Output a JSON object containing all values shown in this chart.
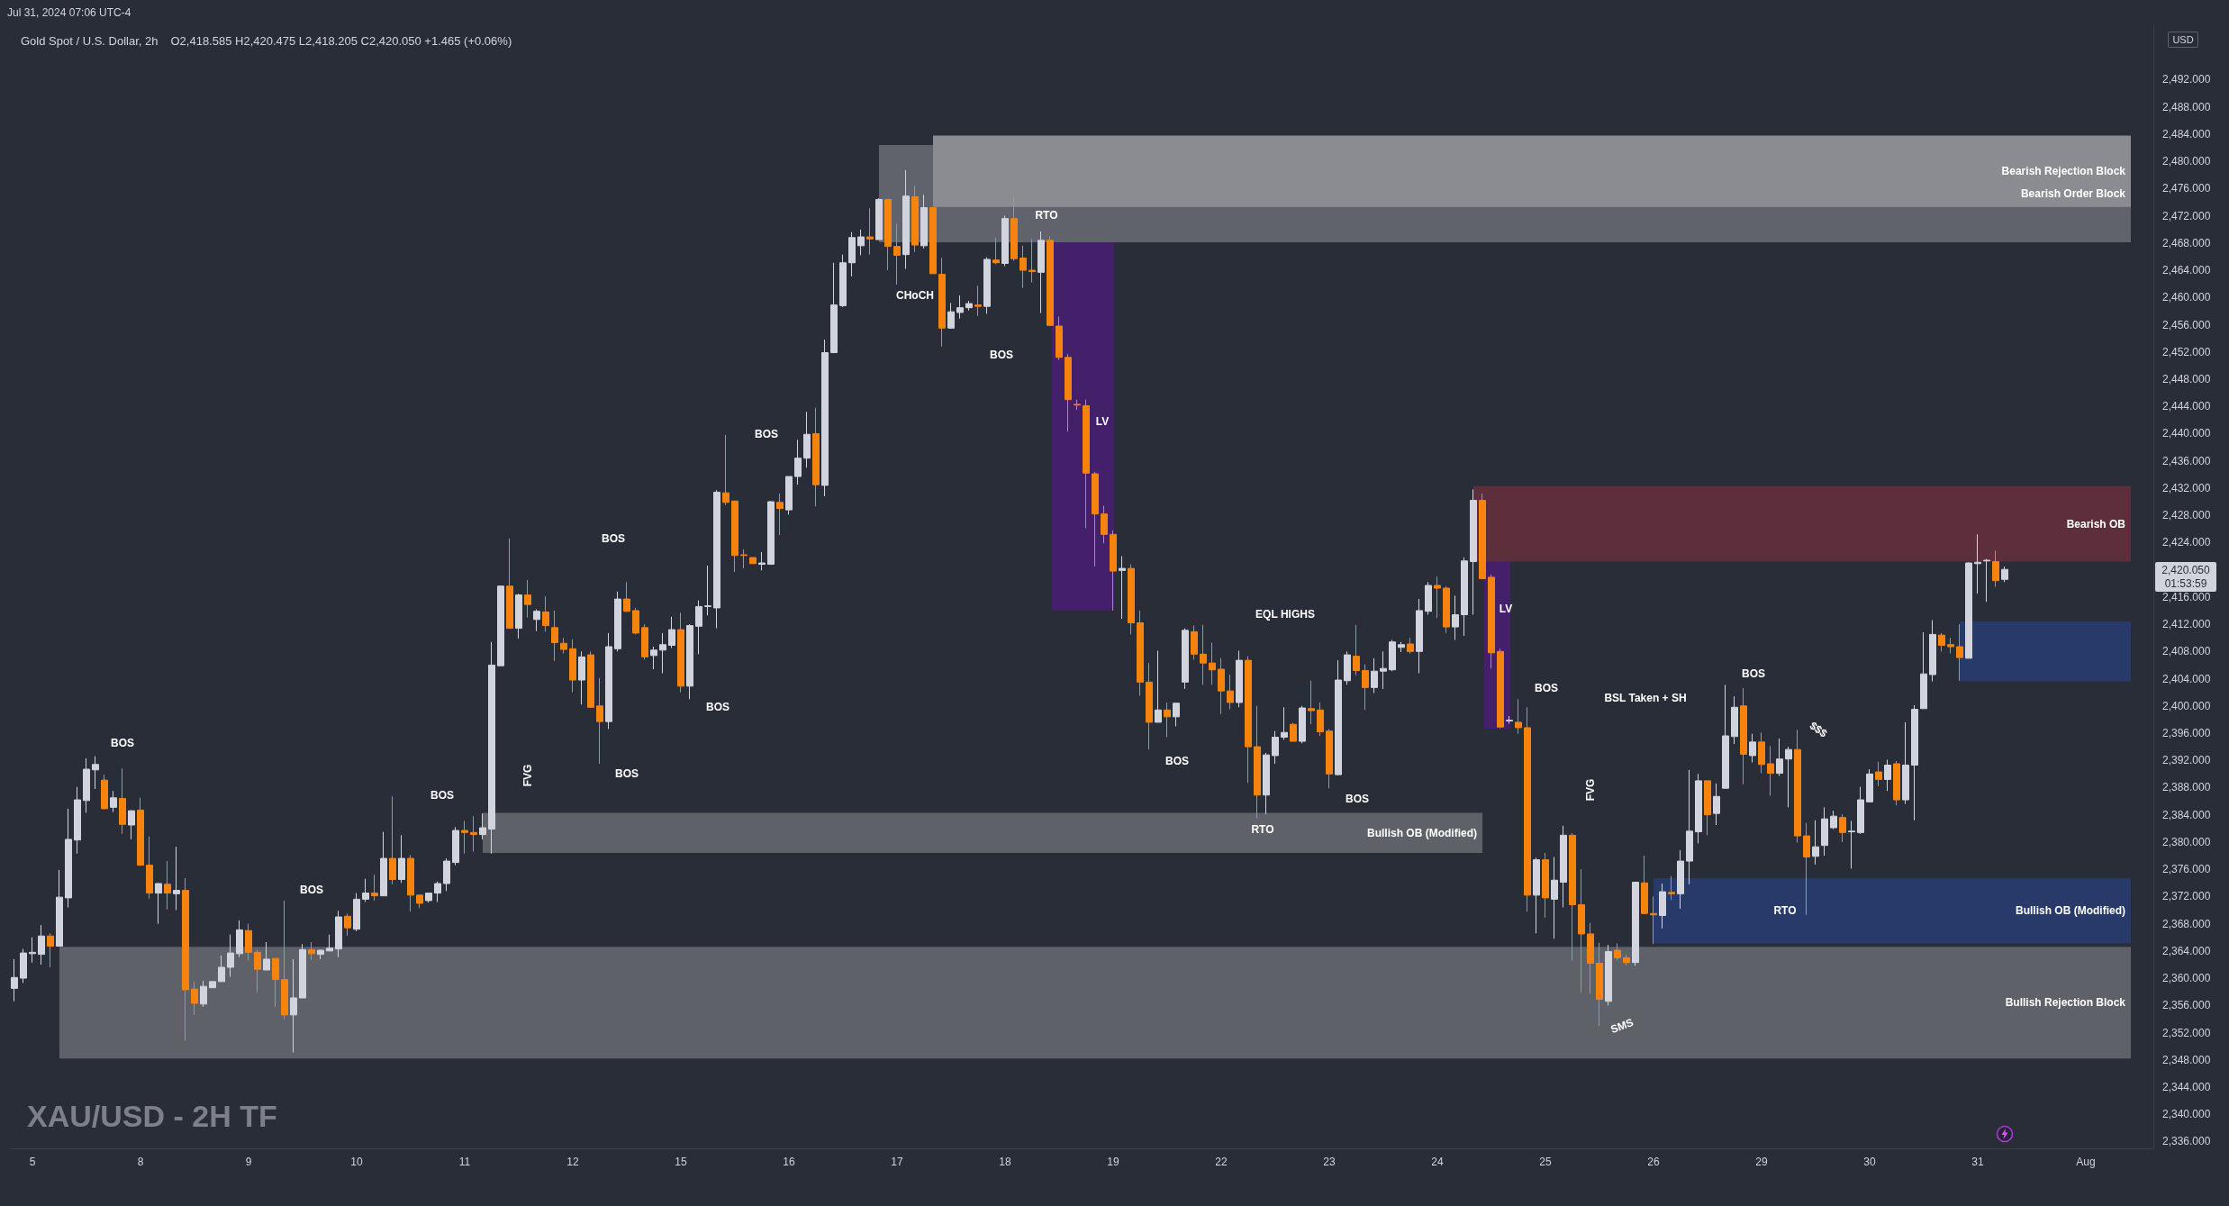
{
  "chart_data": {
    "type": "candlestick",
    "title": "Gold Spot / U.S. Dollar, 2h",
    "subtitle": "O2,418.585 H2,420.475 L2,418.205 C2,420.050 +1.465 (+0.06%)",
    "categories": [
      null,
      null,
      "5",
      null,
      null,
      null,
      null,
      null,
      null,
      null,
      null,
      null,
      null,
      null,
      "8",
      null,
      null,
      null,
      null,
      null,
      null,
      null,
      null,
      null,
      null,
      null,
      "9",
      null,
      null,
      null,
      null,
      null,
      null,
      null,
      null,
      null,
      null,
      null,
      "10",
      null,
      null,
      null,
      null,
      null,
      null,
      null,
      null,
      null,
      null,
      null,
      "11",
      null,
      null,
      null,
      null,
      null,
      null,
      null,
      null,
      null,
      null,
      null,
      "12",
      null,
      null,
      null,
      null,
      null,
      null,
      null,
      null,
      null,
      null,
      null,
      "15",
      null,
      null,
      null,
      null,
      null,
      null,
      null,
      null,
      null,
      null,
      null,
      "16",
      null,
      null,
      null,
      null,
      null,
      null,
      null,
      null,
      null,
      null,
      null,
      "17",
      null,
      null,
      null,
      null,
      null,
      null,
      null,
      null,
      null,
      null,
      null,
      "18",
      null,
      null,
      null,
      null,
      null,
      null,
      null,
      null,
      null,
      null,
      null,
      "19",
      null,
      null,
      null,
      null,
      null,
      null,
      null,
      null,
      null,
      null,
      null,
      "22",
      null,
      null,
      null,
      null,
      null,
      null,
      null,
      null,
      null,
      null,
      null,
      "23",
      null,
      null,
      null,
      null,
      null,
      null,
      null,
      null,
      null,
      null,
      null,
      "24",
      null,
      null,
      null,
      null,
      null,
      null,
      null,
      null,
      null,
      null,
      null,
      "25",
      null,
      null,
      null,
      null,
      null,
      null,
      null,
      null,
      null,
      null,
      null,
      "26",
      null,
      null,
      null,
      null,
      null,
      null,
      null,
      null,
      null,
      null,
      null,
      "29",
      null,
      null,
      null,
      null,
      null,
      null,
      null,
      null,
      null,
      null,
      null,
      "30",
      null,
      null,
      null,
      null,
      null,
      null,
      null,
      null,
      null,
      null,
      null,
      "31",
      null,
      null,
      null,
      null,
      null,
      null,
      null,
      null,
      null,
      null,
      null,
      "Aug",
      null,
      null,
      null,
      null,
      null,
      null,
      null
    ],
    "ohlc": [
      [
        2358.5,
        2362.8,
        2356.6,
        2360.1
      ],
      [
        2360.0,
        2364.3,
        2359.3,
        2363.7
      ],
      [
        2363.6,
        2366.0,
        2362.3,
        2363.8
      ],
      [
        2363.5,
        2367.8,
        2362.0,
        2366.2
      ],
      [
        2366.2,
        2366.6,
        2361.6,
        2364.7
      ],
      [
        2364.7,
        2375.9,
        2364.7,
        2371.9
      ],
      [
        2371.8,
        2384.9,
        2370.4,
        2380.4
      ],
      [
        2380.3,
        2388.1,
        2378.3,
        2386.2
      ],
      [
        2386.1,
        2392.3,
        2384.3,
        2390.7
      ],
      [
        2390.6,
        2392.6,
        2387.8,
        2391.4
      ],
      [
        2389.1,
        2389.9,
        2384.8,
        2384.9
      ],
      [
        2385.1,
        2387.5,
        2384.4,
        2386.5
      ],
      [
        2386.4,
        2390.8,
        2381.2,
        2382.6
      ],
      [
        2382.5,
        2384.7,
        2380.4,
        2384.6
      ],
      [
        2384.7,
        2386.5,
        2376.5,
        2376.6
      ],
      [
        2376.6,
        2380.8,
        2371.7,
        2372.5
      ],
      [
        2372.5,
        2374.0,
        2368.0,
        2373.9
      ],
      [
        2373.8,
        2377.2,
        2370.1,
        2372.5
      ],
      [
        2372.4,
        2379.3,
        2370.0,
        2372.9
      ],
      [
        2372.9,
        2374.7,
        2350.8,
        2358.3
      ],
      [
        2358.4,
        2359.5,
        2354.6,
        2356.3
      ],
      [
        2356.2,
        2359.6,
        2355.8,
        2358.8
      ],
      [
        2358.6,
        2359.5,
        2358.6,
        2359.5
      ],
      [
        2359.5,
        2363.3,
        2359.5,
        2361.6
      ],
      [
        2361.6,
        2366.4,
        2360.2,
        2363.7
      ],
      [
        2363.6,
        2368.5,
        2363.1,
        2367.1
      ],
      [
        2367.0,
        2368.0,
        2362.6,
        2363.8
      ],
      [
        2363.8,
        2364.2,
        2357.9,
        2361.3
      ],
      [
        2361.2,
        2365.3,
        2361.2,
        2362.8
      ],
      [
        2362.9,
        2362.9,
        2355.8,
        2359.8
      ],
      [
        2359.8,
        2371.4,
        2353.9,
        2354.6
      ],
      [
        2354.6,
        2362.8,
        2349.1,
        2357.1
      ],
      [
        2357.1,
        2365.0,
        2357.1,
        2364.2
      ],
      [
        2364.2,
        2365.3,
        2362.7,
        2363.6
      ],
      [
        2363.5,
        2364.2,
        2362.8,
        2364.1
      ],
      [
        2364.0,
        2366.4,
        2364.0,
        2364.4
      ],
      [
        2364.3,
        2369.9,
        2363.1,
        2369.0
      ],
      [
        2369.1,
        2369.5,
        2366.2,
        2367.4
      ],
      [
        2367.2,
        2372.5,
        2366.9,
        2371.6
      ],
      [
        2371.6,
        2374.6,
        2371.2,
        2372.5
      ],
      [
        2372.5,
        2375.2,
        2371.4,
        2372.1
      ],
      [
        2372.1,
        2381.5,
        2372.1,
        2377.6
      ],
      [
        2377.6,
        2386.7,
        2373.8,
        2374.5
      ],
      [
        2374.5,
        2381.0,
        2374.0,
        2377.6
      ],
      [
        2377.6,
        2378.1,
        2369.8,
        2372.2
      ],
      [
        2372.2,
        2372.2,
        2370.3,
        2371.0
      ],
      [
        2371.4,
        2372.5,
        2371.1,
        2372.5
      ],
      [
        2372.5,
        2374.2,
        2371.2,
        2373.9
      ],
      [
        2373.9,
        2377.6,
        2372.8,
        2377.2
      ],
      [
        2377.0,
        2382.2,
        2376.6,
        2381.7
      ],
      [
        2381.7,
        2383.1,
        2378.3,
        2381.4
      ],
      [
        2381.4,
        2383.8,
        2378.6,
        2381.1
      ],
      [
        2381.1,
        2384.2,
        2380.4,
        2382.1
      ],
      [
        2381.9,
        2409.4,
        2378.3,
        2406.0
      ],
      [
        2405.9,
        2417.7,
        2405.9,
        2417.6
      ],
      [
        2417.6,
        2424.6,
        2411.4,
        2411.4
      ],
      [
        2411.4,
        2416.5,
        2409.9,
        2416.3
      ],
      [
        2416.3,
        2418.5,
        2413.0,
        2414.9
      ],
      [
        2412.7,
        2414.2,
        2411.0,
        2413.9
      ],
      [
        2413.8,
        2416.1,
        2410.9,
        2411.8
      ],
      [
        2411.5,
        2414.0,
        2406.6,
        2409.3
      ],
      [
        2409.2,
        2410.0,
        2407.7,
        2408.3
      ],
      [
        2408.4,
        2409.8,
        2402.0,
        2403.8
      ],
      [
        2403.8,
        2408.0,
        2400.2,
        2407.2
      ],
      [
        2407.5,
        2408.0,
        2399.7,
        2399.8
      ],
      [
        2400.0,
        2404.1,
        2391.5,
        2397.7
      ],
      [
        2397.7,
        2410.7,
        2396.6,
        2408.7
      ],
      [
        2408.4,
        2416.8,
        2408.0,
        2415.7
      ],
      [
        2415.7,
        2418.2,
        2413.8,
        2413.9
      ],
      [
        2414.0,
        2414.4,
        2410.5,
        2410.7
      ],
      [
        2411.5,
        2412.0,
        2406.8,
        2407.2
      ],
      [
        2407.4,
        2408.7,
        2405.4,
        2408.2
      ],
      [
        2408.2,
        2410.7,
        2404.8,
        2409.0
      ],
      [
        2408.9,
        2413.1,
        2408.5,
        2411.2
      ],
      [
        2411.2,
        2413.7,
        2402.0,
        2402.9
      ],
      [
        2402.9,
        2412.0,
        2401.0,
        2411.8
      ],
      [
        2411.7,
        2415.5,
        2407.6,
        2414.6
      ],
      [
        2414.6,
        2420.6,
        2413.3,
        2414.7
      ],
      [
        2414.4,
        2431.7,
        2411.4,
        2431.4
      ],
      [
        2431.3,
        2439.8,
        2429.5,
        2429.9
      ],
      [
        2430.1,
        2430.1,
        2419.7,
        2422.1
      ],
      [
        2422.2,
        2423.0,
        2420.2,
        2422.1
      ],
      [
        2421.8,
        2421.8,
        2420.9,
        2420.9
      ],
      [
        2420.8,
        2422.6,
        2419.9,
        2421.0
      ],
      [
        2420.8,
        2430.1,
        2420.8,
        2430.0
      ],
      [
        2429.9,
        2431.2,
        2425.1,
        2429.0
      ],
      [
        2428.8,
        2433.7,
        2428.1,
        2433.7
      ],
      [
        2433.7,
        2439.1,
        2432.5,
        2436.4
      ],
      [
        2436.4,
        2443.2,
        2435.0,
        2439.9
      ],
      [
        2440.0,
        2443.8,
        2429.3,
        2432.5
      ],
      [
        2432.4,
        2453.8,
        2430.8,
        2451.9
      ],
      [
        2451.9,
        2465.1,
        2451.9,
        2458.9
      ],
      [
        2458.8,
        2466.3,
        2458.6,
        2465.1
      ],
      [
        2465.1,
        2469.6,
        2463.1,
        2468.8
      ],
      [
        2467.6,
        2470.0,
        2466.2,
        2468.9
      ],
      [
        2468.9,
        2473.1,
        2466.3,
        2468.6
      ],
      [
        2468.5,
        2474.6,
        2468.5,
        2474.4
      ],
      [
        2474.4,
        2474.4,
        2464.0,
        2467.5
      ],
      [
        2467.5,
        2470.8,
        2461.9,
        2466.2
      ],
      [
        2466.3,
        2478.7,
        2464.2,
        2474.9
      ],
      [
        2474.8,
        2476.4,
        2466.7,
        2467.7
      ],
      [
        2467.6,
        2475.1,
        2467.2,
        2473.2
      ],
      [
        2473.2,
        2473.2,
        2463.5,
        2463.5
      ],
      [
        2463.4,
        2465.8,
        2452.8,
        2455.5
      ],
      [
        2455.5,
        2459.2,
        2455.4,
        2457.9
      ],
      [
        2457.8,
        2460.3,
        2456.9,
        2458.5
      ],
      [
        2458.5,
        2459.5,
        2458.1,
        2459.1
      ],
      [
        2458.9,
        2461.7,
        2457.3,
        2458.7
      ],
      [
        2458.7,
        2465.9,
        2457.6,
        2465.6
      ],
      [
        2465.5,
        2468.8,
        2464.9,
        2465.1
      ],
      [
        2465.0,
        2472.0,
        2464.6,
        2471.6
      ],
      [
        2471.6,
        2474.9,
        2465.4,
        2465.7
      ],
      [
        2465.8,
        2467.6,
        2461.4,
        2464.0
      ],
      [
        2464.0,
        2468.6,
        2462.2,
        2463.8
      ],
      [
        2463.7,
        2469.7,
        2457.7,
        2468.4
      ],
      [
        2468.4,
        2469.0,
        2455.8,
        2455.9
      ],
      [
        2455.8,
        2457.2,
        2450.8,
        2451.2
      ],
      [
        2451.2,
        2451.7,
        2440.3,
        2445.0
      ],
      [
        2444.3,
        2445.0,
        2443.5,
        2444.2
      ],
      [
        2444.1,
        2445.0,
        2426.1,
        2434.2
      ],
      [
        2434.1,
        2434.4,
        2420.5,
        2428.2
      ],
      [
        2428.2,
        2429.4,
        2423.9,
        2425.2
      ],
      [
        2425.2,
        2425.8,
        2414.0,
        2419.8
      ],
      [
        2419.9,
        2422.0,
        2412.8,
        2420.2
      ],
      [
        2420.2,
        2420.8,
        2410.5,
        2412.2
      ],
      [
        2412.2,
        2414.0,
        2401.5,
        2403.5
      ],
      [
        2403.5,
        2406.3,
        2393.6,
        2397.6
      ],
      [
        2397.6,
        2408.1,
        2397.6,
        2399.4
      ],
      [
        2399.4,
        2400.5,
        2395.4,
        2398.4
      ],
      [
        2398.4,
        2400.4,
        2397.0,
        2400.4
      ],
      [
        2403.5,
        2411.4,
        2402.5,
        2411.1
      ],
      [
        2410.9,
        2411.8,
        2406.8,
        2407.6
      ],
      [
        2407.6,
        2411.9,
        2403.1,
        2406.3
      ],
      [
        2406.3,
        2409.3,
        2403.1,
        2405.3
      ],
      [
        2405.4,
        2407.0,
        2398.8,
        2402.2
      ],
      [
        2402.2,
        2404.6,
        2399.5,
        2400.5
      ],
      [
        2400.5,
        2408.1,
        2399.8,
        2406.7
      ],
      [
        2406.7,
        2407.3,
        2388.7,
        2394.0
      ],
      [
        2394.0,
        2400.0,
        2383.5,
        2386.9
      ],
      [
        2386.9,
        2393.1,
        2384.1,
        2392.8
      ],
      [
        2392.7,
        2396.3,
        2391.5,
        2395.4
      ],
      [
        2395.4,
        2399.8,
        2395.0,
        2396.1
      ],
      [
        2397.3,
        2397.5,
        2394.8,
        2394.8
      ],
      [
        2394.8,
        2400.0,
        2394.5,
        2399.7
      ],
      [
        2399.6,
        2403.7,
        2397.3,
        2399.3
      ],
      [
        2399.4,
        2400.5,
        2395.6,
        2396.2
      ],
      [
        2396.3,
        2396.6,
        2387.9,
        2390.0
      ],
      [
        2389.9,
        2406.7,
        2389.8,
        2403.8
      ],
      [
        2403.7,
        2408.0,
        2403.1,
        2407.5
      ],
      [
        2407.3,
        2411.9,
        2404.5,
        2405.2
      ],
      [
        2405.2,
        2406.1,
        2399.4,
        2402.7
      ],
      [
        2402.7,
        2407.0,
        2401.9,
        2405.1
      ],
      [
        2405.1,
        2408.0,
        2402.5,
        2405.5
      ],
      [
        2405.3,
        2409.7,
        2405.1,
        2409.4
      ],
      [
        2408.6,
        2409.4,
        2407.9,
        2409.0
      ],
      [
        2409.1,
        2410.0,
        2407.7,
        2408.0
      ],
      [
        2408.0,
        2415.7,
        2404.8,
        2414.0
      ],
      [
        2413.9,
        2418.2,
        2413.4,
        2417.7
      ],
      [
        2417.7,
        2419.0,
        2412.9,
        2417.3
      ],
      [
        2417.3,
        2417.6,
        2410.7,
        2411.6
      ],
      [
        2411.6,
        2416.2,
        2409.7,
        2413.4
      ],
      [
        2413.4,
        2421.8,
        2410.3,
        2421.3
      ],
      [
        2421.2,
        2431.8,
        2413.4,
        2430.2
      ],
      [
        2430.2,
        2431.2,
        2418.6,
        2418.7
      ],
      [
        2418.9,
        2419.3,
        2405.5,
        2407.8
      ],
      [
        2408.0,
        2408.4,
        2396.7,
        2396.9
      ],
      [
        2397.8,
        2398.5,
        2397.4,
        2397.9
      ],
      [
        2397.6,
        2401.0,
        2395.9,
        2396.8
      ],
      [
        2396.8,
        2399.8,
        2369.8,
        2372.2
      ],
      [
        2372.2,
        2377.7,
        2366.6,
        2377.4
      ],
      [
        2377.4,
        2378.4,
        2368.9,
        2371.8
      ],
      [
        2371.6,
        2377.8,
        2365.8,
        2374.4
      ],
      [
        2374.1,
        2382.4,
        2370.4,
        2381.0
      ],
      [
        2381.0,
        2381.3,
        2362.6,
        2370.8
      ],
      [
        2370.8,
        2376.0,
        2357.9,
        2366.5
      ],
      [
        2366.5,
        2368.1,
        2357.7,
        2362.2
      ],
      [
        2362.2,
        2365.2,
        2353.0,
        2356.9
      ],
      [
        2356.6,
        2364.9,
        2356.0,
        2363.9
      ],
      [
        2364.1,
        2365.1,
        2362.6,
        2363.0
      ],
      [
        2363.0,
        2363.4,
        2361.9,
        2362.3
      ],
      [
        2362.3,
        2374.1,
        2361.8,
        2374.1
      ],
      [
        2374.0,
        2378.0,
        2369.4,
        2369.5
      ],
      [
        2369.5,
        2372.0,
        2365.0,
        2369.3
      ],
      [
        2369.2,
        2373.9,
        2367.3,
        2372.7
      ],
      [
        2372.6,
        2375.0,
        2371.5,
        2372.4
      ],
      [
        2372.4,
        2378.8,
        2370.2,
        2377.2
      ],
      [
        2377.2,
        2390.6,
        2373.8,
        2381.6
      ],
      [
        2381.5,
        2390.0,
        2379.8,
        2389.0
      ],
      [
        2389.0,
        2389.0,
        2381.0,
        2384.0
      ],
      [
        2384.2,
        2388.6,
        2382.5,
        2386.7
      ],
      [
        2387.9,
        2403.1,
        2387.8,
        2395.6
      ],
      [
        2395.5,
        2401.4,
        2394.4,
        2399.8
      ],
      [
        2400.0,
        2402.6,
        2388.5,
        2392.9
      ],
      [
        2392.7,
        2395.9,
        2391.7,
        2394.7
      ],
      [
        2394.7,
        2396.1,
        2390.1,
        2391.4
      ],
      [
        2391.5,
        2394.1,
        2386.8,
        2390.1
      ],
      [
        2390.1,
        2395.2,
        2389.7,
        2392.2
      ],
      [
        2392.2,
        2394.0,
        2385.1,
        2393.6
      ],
      [
        2393.6,
        2396.5,
        2379.9,
        2380.9
      ],
      [
        2380.9,
        2382.8,
        2369.3,
        2377.8
      ],
      [
        2377.9,
        2383.2,
        2376.7,
        2379.3
      ],
      [
        2379.5,
        2385.1,
        2378.0,
        2383.4
      ],
      [
        2382.1,
        2384.6,
        2381.9,
        2383.8
      ],
      [
        2383.6,
        2384.1,
        2380.0,
        2381.4
      ],
      [
        2381.5,
        2383.1,
        2376.1,
        2381.6
      ],
      [
        2381.4,
        2388.1,
        2381.2,
        2386.2
      ],
      [
        2385.9,
        2390.7,
        2385.9,
        2390.0
      ],
      [
        2390.3,
        2391.8,
        2388.2,
        2389.2
      ],
      [
        2389.2,
        2392.1,
        2387.5,
        2391.3
      ],
      [
        2391.5,
        2391.9,
        2385.4,
        2386.2
      ],
      [
        2386.2,
        2397.6,
        2385.6,
        2391.3
      ],
      [
        2391.3,
        2400.1,
        2383.2,
        2399.5
      ],
      [
        2399.6,
        2410.8,
        2399.6,
        2404.7
      ],
      [
        2404.6,
        2412.6,
        2403.6,
        2410.5
      ],
      [
        2410.4,
        2410.7,
        2408.0,
        2408.9
      ],
      [
        2409.0,
        2410.0,
        2407.7,
        2408.7
      ],
      [
        2408.7,
        2412.0,
        2403.7,
        2407.1
      ],
      [
        2407.0,
        2421.1,
        2407.0,
        2421.0
      ],
      [
        2420.9,
        2425.2,
        2416.5,
        2421.1
      ],
      [
        2421.3,
        2421.6,
        2415.3,
        2421.4
      ],
      [
        2421.2,
        2422.8,
        2417.5,
        2418.4
      ],
      [
        2418.585,
        2420.475,
        2418.205,
        2420.05
      ],
      null,
      null,
      null,
      null,
      null,
      null,
      null,
      null,
      null,
      null,
      null,
      null,
      null,
      null,
      null,
      null
    ],
    "colors": [
      "#d1d4dc",
      "#d1d4dc",
      "#d1d4dc",
      "#d1d4dc",
      "#f7830f",
      "#d1d4dc",
      "#d1d4dc",
      "#d1d4dc",
      "#d1d4dc",
      "#d1d4dc",
      "#f7830f",
      "#d1d4dc",
      "#f7830f",
      "#d1d4dc",
      "#f7830f",
      "#f7830f",
      "#d1d4dc",
      "#f7830f",
      "#d1d4dc",
      "#f7830f",
      "#f7830f",
      "#d1d4dc",
      "#d1d4dc",
      "#d1d4dc",
      "#d1d4dc",
      "#d1d4dc",
      "#f7830f",
      "#f7830f",
      "#d1d4dc",
      "#f7830f",
      "#f7830f",
      "#d1d4dc",
      "#d1d4dc",
      "#f7830f",
      "#d1d4dc",
      "#d1d4dc",
      "#d1d4dc",
      "#f7830f",
      "#d1d4dc",
      "#d1d4dc",
      "#f7830f",
      "#d1d4dc",
      "#f7830f",
      "#d1d4dc",
      "#f7830f",
      "#f7830f",
      "#d1d4dc",
      "#d1d4dc",
      "#d1d4dc",
      "#d1d4dc",
      "#f7830f",
      "#f7830f",
      "#d1d4dc",
      "#d1d4dc",
      "#d1d4dc",
      "#f7830f",
      "#d1d4dc",
      "#f7830f",
      "#d1d4dc",
      "#f7830f",
      "#f7830f",
      "#f7830f",
      "#f7830f",
      "#d1d4dc",
      "#f7830f",
      "#f7830f",
      "#d1d4dc",
      "#d1d4dc",
      "#f7830f",
      "#f7830f",
      "#f7830f",
      "#d1d4dc",
      "#d1d4dc",
      "#d1d4dc",
      "#f7830f",
      "#d1d4dc",
      "#d1d4dc",
      "#d1d4dc",
      "#d1d4dc",
      "#f7830f",
      "#f7830f",
      "#f7830f",
      "#f7830f",
      "#d1d4dc",
      "#d1d4dc",
      "#f7830f",
      "#d1d4dc",
      "#d1d4dc",
      "#d1d4dc",
      "#f7830f",
      "#d1d4dc",
      "#d1d4dc",
      "#d1d4dc",
      "#d1d4dc",
      "#d1d4dc",
      "#f7830f",
      "#d1d4dc",
      "#f7830f",
      "#f7830f",
      "#d1d4dc",
      "#f7830f",
      "#d1d4dc",
      "#f7830f",
      "#f7830f",
      "#d1d4dc",
      "#d1d4dc",
      "#d1d4dc",
      "#f7830f",
      "#d1d4dc",
      "#f7830f",
      "#d1d4dc",
      "#f7830f",
      "#f7830f",
      "#f7830f",
      "#d1d4dc",
      "#f7830f",
      "#f7830f",
      "#f7830f",
      "#f7830f",
      "#f7830f",
      "#f7830f",
      "#f7830f",
      "#f7830f",
      "#d1d4dc",
      "#f7830f",
      "#f7830f",
      "#f7830f",
      "#d1d4dc",
      "#f7830f",
      "#d1d4dc",
      "#d1d4dc",
      "#f7830f",
      "#f7830f",
      "#f7830f",
      "#f7830f",
      "#f7830f",
      "#d1d4dc",
      "#f7830f",
      "#f7830f",
      "#d1d4dc",
      "#d1d4dc",
      "#d1d4dc",
      "#f7830f",
      "#d1d4dc",
      "#f7830f",
      "#f7830f",
      "#f7830f",
      "#d1d4dc",
      "#d1d4dc",
      "#f7830f",
      "#f7830f",
      "#d1d4dc",
      "#d1d4dc",
      "#d1d4dc",
      "#d1d4dc",
      "#f7830f",
      "#d1d4dc",
      "#d1d4dc",
      "#f7830f",
      "#f7830f",
      "#d1d4dc",
      "#d1d4dc",
      "#d1d4dc",
      "#f7830f",
      "#f7830f",
      "#f7830f",
      "#d1d4dc",
      "#f7830f",
      "#f7830f",
      "#d1d4dc",
      "#f7830f",
      "#d1d4dc",
      "#d1d4dc",
      "#f7830f",
      "#f7830f",
      "#f7830f",
      "#f7830f",
      "#d1d4dc",
      "#f7830f",
      "#f7830f",
      "#d1d4dc",
      "#f7830f",
      "#f7830f",
      "#d1d4dc",
      "#f7830f",
      "#d1d4dc",
      "#d1d4dc",
      "#d1d4dc",
      "#f7830f",
      "#d1d4dc",
      "#d1d4dc",
      "#d1d4dc",
      "#f7830f",
      "#d1d4dc",
      "#f7830f",
      "#f7830f",
      "#d1d4dc",
      "#d1d4dc",
      "#f7830f",
      "#f7830f",
      "#d1d4dc",
      "#d1d4dc",
      "#d1d4dc",
      "#f7830f",
      "#d1d4dc",
      "#d1d4dc",
      "#d1d4dc",
      "#f7830f",
      "#d1d4dc",
      "#f7830f",
      "#d1d4dc",
      "#d1d4dc",
      "#d1d4dc",
      "#d1d4dc",
      "#f7830f",
      "#f7830f",
      "#f7830f",
      "#d1d4dc",
      "#d1d4dc",
      "#d1d4dc",
      "#f7830f",
      "#d1d4dc",
      null,
      null,
      null,
      null,
      null,
      null,
      null,
      null,
      null,
      null,
      null,
      null,
      null,
      null,
      null,
      null
    ],
    "ylim": [
      2335,
      2500
    ],
    "yticks": [
      {
        "value": 2336,
        "label": "2,336.000"
      },
      {
        "value": 2340,
        "label": "2,340.000"
      },
      {
        "value": 2344,
        "label": "2,344.000"
      },
      {
        "value": 2348,
        "label": "2,348.000"
      },
      {
        "value": 2352,
        "label": "2,352.000"
      },
      {
        "value": 2356,
        "label": "2,356.000"
      },
      {
        "value": 2360,
        "label": "2,360.000"
      },
      {
        "value": 2364,
        "label": "2,364.000"
      },
      {
        "value": 2368,
        "label": "2,368.000"
      },
      {
        "value": 2372,
        "label": "2,372.000"
      },
      {
        "value": 2376,
        "label": "2,376.000"
      },
      {
        "value": 2380,
        "label": "2,380.000"
      },
      {
        "value": 2384,
        "label": "2,384.000"
      },
      {
        "value": 2388,
        "label": "2,388.000"
      },
      {
        "value": 2392,
        "label": "2,392.000"
      },
      {
        "value": 2396,
        "label": "2,396.000"
      },
      {
        "value": 2400,
        "label": "2,400.000"
      },
      {
        "value": 2404,
        "label": "2,404.000"
      },
      {
        "value": 2408,
        "label": "2,408.000"
      },
      {
        "value": 2412,
        "label": "2,412.000"
      },
      {
        "value": 2416,
        "label": "2,416.000"
      },
      {
        "value": 2424,
        "label": "2,424.000"
      },
      {
        "value": 2428,
        "label": "2,428.000"
      },
      {
        "value": 2432,
        "label": "2,432.000"
      },
      {
        "value": 2436,
        "label": "2,436.000"
      },
      {
        "value": 2440,
        "label": "2,440.000"
      },
      {
        "value": 2444,
        "label": "2,444.000"
      },
      {
        "value": 2448,
        "label": "2,448.000"
      },
      {
        "value": 2452,
        "label": "2,452.000"
      },
      {
        "value": 2456,
        "label": "2,456.000"
      },
      {
        "value": 2460,
        "label": "2,460.000"
      },
      {
        "value": 2464,
        "label": "2,464.000"
      },
      {
        "value": 2468,
        "label": "2,468.000"
      },
      {
        "value": 2472,
        "label": "2,472.000"
      },
      {
        "value": 2476,
        "label": "2,476.000"
      },
      {
        "value": 2480,
        "label": "2,480.000"
      },
      {
        "value": 2484,
        "label": "2,484.000"
      },
      {
        "value": 2488,
        "label": "2,488.000"
      },
      {
        "value": 2492,
        "label": "2,492.000"
      }
    ],
    "bands": [
      {
        "axis": "y",
        "from": 2348.2,
        "to": 2364.6,
        "label": "Bullish Rejection Block",
        "color": "#5f6169"
      },
      {
        "axis": "y",
        "from": 2378.4,
        "to": 2384.3,
        "label": "Bullish OB (Modified)",
        "color": "#5f6169"
      },
      {
        "axis": "y",
        "from": 2365.1,
        "to": 2374.7,
        "label": "Bullish OB (Modified)",
        "color": "#283a69"
      },
      {
        "axis": "y",
        "from": 2403.6,
        "to": 2412.4,
        "color": "#283a69"
      },
      {
        "axis": "y",
        "from": 2421.2,
        "to": 2432.3,
        "label": "Bearish OB",
        "color": "#5d2f3c"
      },
      {
        "axis": "y",
        "from": 2468.1,
        "to": 2482.4,
        "label": "Bearish Order Block",
        "color": "#60636c"
      },
      {
        "axis": "y",
        "from": 2473.3,
        "to": 2483.8,
        "label": "Bearish Rejection Block",
        "color": "#8b8c92"
      }
    ],
    "annotations": [
      "Jul 31, 2024 07:06 UTC-4",
      "XAU/USD - 2H TF",
      "USD",
      "2,420.050",
      "01:53:59",
      "BOS",
      "BOS",
      "BOS",
      "BOS",
      "FVG",
      "BOS",
      "BOS",
      "BOS",
      "CHoCH",
      "BOS",
      "RTO",
      "LV",
      "BOS",
      "EQL HIGHS",
      "RTO",
      "BOS",
      "LV",
      "BOS",
      "FVG",
      "BSL Taken + SH",
      "SMS",
      "BOS",
      "RTO",
      "$$$"
    ]
  }
}
